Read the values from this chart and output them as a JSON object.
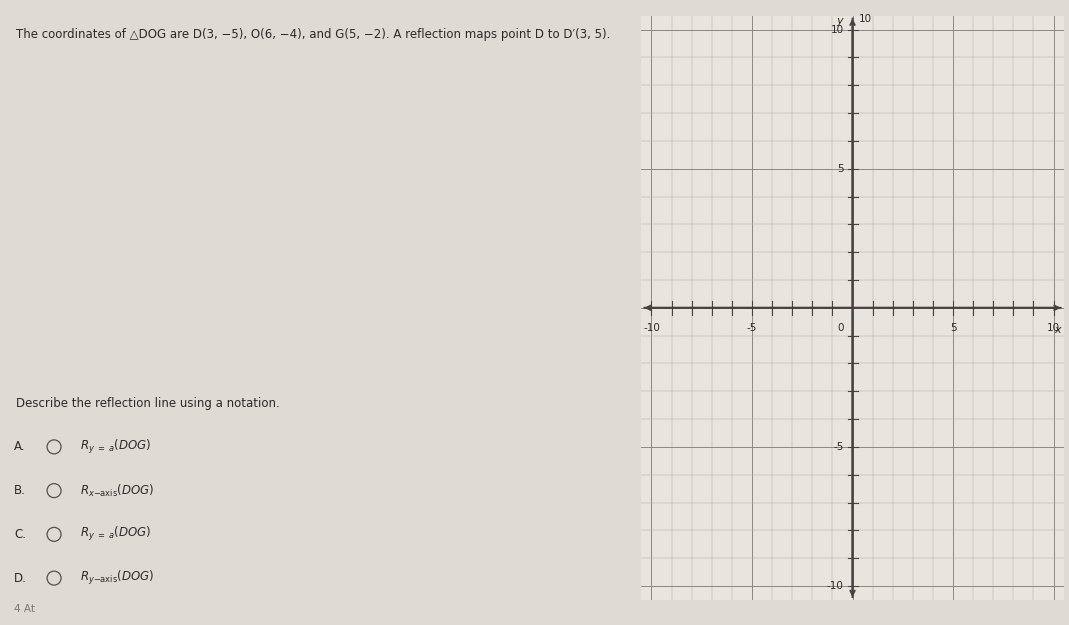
{
  "title_text": "The coordinates of △DOG are D(3, −5), O(6, −4), and G(5, −2). A reflection maps point D to D′(3, 5).",
  "question_text": "Describe the reflection line using a notation.",
  "option_labels": [
    "A.",
    "B.",
    "C.",
    "D."
  ],
  "option_notations": [
    "R_{y = a}(DOG)",
    "R_{x-axis}(DOG)",
    "R_{y = a}(DOG)",
    "R_{y-axis}(DOG)"
  ],
  "bg_color": "#dedad4",
  "graph_bg": "#e8e5df",
  "axis_color": "#4a4040",
  "grid_fine_color": "#b0aaa4",
  "grid_major_color": "#888080",
  "text_color": "#2a2a2a",
  "radio_color": "#555050",
  "graph_xlim": [
    -10.5,
    10.5
  ],
  "graph_ylim": [
    -10.5,
    10.5
  ],
  "graph_xlabel": "x",
  "graph_ylabel": "y",
  "footer_text": "4 At",
  "title_fontsize": 8.5,
  "body_fontsize": 8.5,
  "tick_fontsize": 7.5
}
